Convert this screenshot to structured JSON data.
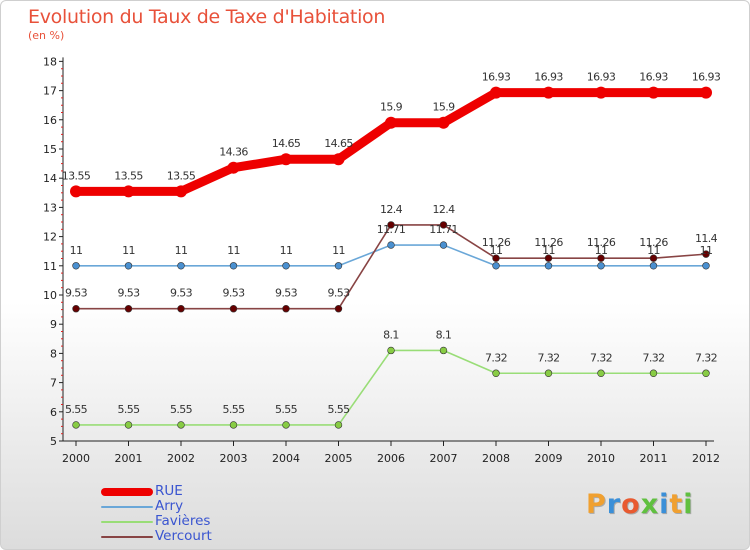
{
  "title": "Evolution du Taux de Taxe d'Habitation",
  "subtitle": "(en %)",
  "logo": {
    "text": "Proxiti",
    "colors": [
      "#f0a030",
      "#3a8fd8",
      "#e85a30",
      "#60c040",
      "#3a8fd8",
      "#f0a030",
      "#60c040"
    ]
  },
  "chart_data": {
    "type": "line",
    "x": [
      "2000",
      "2001",
      "2002",
      "2003",
      "2004",
      "2005",
      "2006",
      "2007",
      "2008",
      "2009",
      "2010",
      "2011",
      "2012"
    ],
    "yticks": [
      "5",
      "6",
      "7",
      "8",
      "9",
      "10",
      "11",
      "12",
      "13",
      "14",
      "15",
      "16",
      "17",
      "18"
    ],
    "ylim": [
      5,
      18
    ],
    "grid": false,
    "legend_placement": "bottom-left",
    "series": [
      {
        "name": "RUE",
        "color": "#ee0000",
        "marker": "#ee0000",
        "thick": true,
        "values": [
          13.55,
          13.55,
          13.55,
          14.36,
          14.65,
          14.65,
          15.9,
          15.9,
          16.93,
          16.93,
          16.93,
          16.93,
          16.93
        ],
        "labels": [
          "13.55",
          "13.55",
          "13.55",
          "14.36",
          "14.65",
          "14.65",
          "15.9",
          "15.9",
          "16.93",
          "16.93",
          "16.93",
          "16.93",
          "16.93"
        ]
      },
      {
        "name": "Arry",
        "color": "#6aa7d8",
        "marker": "#4a90d0",
        "thick": false,
        "values": [
          11,
          11,
          11,
          11,
          11,
          11,
          11.71,
          11.71,
          11,
          11,
          11,
          11,
          11
        ],
        "labels": [
          "11",
          "11",
          "11",
          "11",
          "11",
          "11",
          "11.71",
          "11.71",
          "11",
          "11",
          "11",
          "11",
          "11"
        ]
      },
      {
        "name": "Favières",
        "color": "#99dd77",
        "marker": "#88cc44",
        "thick": false,
        "values": [
          5.55,
          5.55,
          5.55,
          5.55,
          5.55,
          5.55,
          8.1,
          8.1,
          7.32,
          7.32,
          7.32,
          7.32,
          7.32
        ],
        "labels": [
          "5.55",
          "5.55",
          "5.55",
          "5.55",
          "5.55",
          "5.55",
          "8.1",
          "8.1",
          "7.32",
          "7.32",
          "7.32",
          "7.32",
          "7.32"
        ]
      },
      {
        "name": "Vercourt",
        "color": "#884444",
        "marker": "#660000",
        "thick": false,
        "values": [
          9.53,
          9.53,
          9.53,
          9.53,
          9.53,
          9.53,
          12.4,
          12.4,
          11.26,
          11.26,
          11.26,
          11.26,
          11.4
        ],
        "labels": [
          "9.53",
          "9.53",
          "9.53",
          "9.53",
          "9.53",
          "9.53",
          "12.4",
          "12.4",
          "11.26",
          "11.26",
          "11.26",
          "11.26",
          "11.4"
        ]
      }
    ]
  }
}
